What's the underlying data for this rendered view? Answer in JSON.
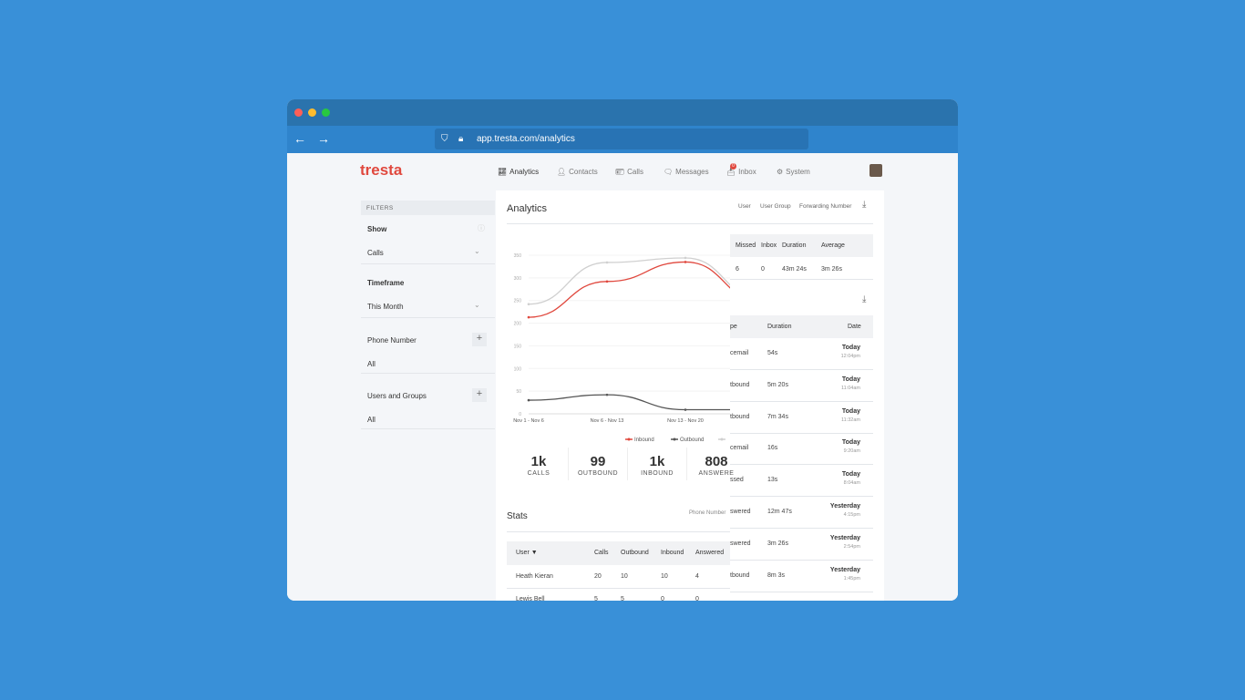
{
  "browser": {
    "url": "app.tresta.com/analytics"
  },
  "brand": "tresta",
  "nav": [
    {
      "label": "Analytics",
      "icon": "chart-icon"
    },
    {
      "label": "Contacts",
      "icon": "person-icon"
    },
    {
      "label": "Calls",
      "icon": "contact-card-icon"
    },
    {
      "label": "Messages",
      "icon": "message-icon"
    },
    {
      "label": "Inbox",
      "icon": "inbox-icon",
      "badge": "0"
    },
    {
      "label": "System",
      "icon": "gear-icon"
    }
  ],
  "filters": {
    "header": "FILTERS",
    "show_label": "Show",
    "show_value": "Calls",
    "timeframe_label": "Timeframe",
    "timeframe_value": "This Month",
    "phone_label": "Phone Number",
    "phone_value": "All",
    "users_label": "Users and Groups",
    "users_value": "All"
  },
  "analytics": {
    "title": "Analytics",
    "filters": [
      "User",
      "User Group",
      "Forwarding Number"
    ]
  },
  "summary": {
    "headers": [
      "Missed",
      "Inbox",
      "Duration",
      "Average"
    ],
    "values": [
      "6",
      "0",
      "43m 24s",
      "3m 26s"
    ]
  },
  "calls_table": {
    "headers": [
      "pe",
      "Duration",
      "Date"
    ],
    "rows": [
      {
        "type": "cemail",
        "duration": "54s",
        "date": "Today",
        "time": "12:04pm"
      },
      {
        "type": "tbound",
        "duration": "5m 20s",
        "date": "Today",
        "time": "11:04am"
      },
      {
        "type": "tbound",
        "duration": "7m 34s",
        "date": "Today",
        "time": "11:32am"
      },
      {
        "type": "cemail",
        "duration": "16s",
        "date": "Today",
        "time": "9:20am"
      },
      {
        "type": "ssed",
        "duration": "13s",
        "date": "Today",
        "time": "8:04am"
      },
      {
        "type": "swered",
        "duration": "12m 47s",
        "date": "Yesterday",
        "time": "4:15pm"
      },
      {
        "type": "swered",
        "duration": "3m 26s",
        "date": "Yesterday",
        "time": "2:54pm"
      },
      {
        "type": "tbound",
        "duration": "8m 3s",
        "date": "Yesterday",
        "time": "1:45pm"
      }
    ]
  },
  "totals": [
    {
      "n": "1k",
      "l": "CALLS"
    },
    {
      "n": "99",
      "l": "OUTBOUND"
    },
    {
      "n": "1k",
      "l": "INBOUND"
    },
    {
      "n": "808",
      "l": "ANSWERE"
    }
  ],
  "stats": {
    "title": "Stats",
    "filter": "Phone Number",
    "headers": [
      "User ▼",
      "Calls",
      "Outbound",
      "Inbound",
      "Answered"
    ],
    "rows": [
      [
        "Heath Kieran",
        "20",
        "10",
        "10",
        "4"
      ],
      [
        "Lewis Bell",
        "5",
        "5",
        "0",
        "0"
      ]
    ]
  },
  "chart_data": {
    "type": "line",
    "categories": [
      "Nov 1 - Nov 6",
      "Nov 6 - Nov 13",
      "Nov 13 - Nov 20",
      "Nov 20+"
    ],
    "yticks": [
      0,
      50,
      100,
      150,
      200,
      250,
      300,
      350
    ],
    "ylim": [
      0,
      350
    ],
    "series": [
      {
        "name": "Inbound",
        "color": "#e0483e",
        "values": [
          213,
          292,
          335,
          245
        ]
      },
      {
        "name": "Outbound",
        "color": "#555555",
        "values": [
          30,
          42,
          9,
          9
        ]
      },
      {
        "name": "",
        "color": "#d0d0d0",
        "values": [
          242,
          334,
          344,
          250
        ]
      }
    ]
  }
}
